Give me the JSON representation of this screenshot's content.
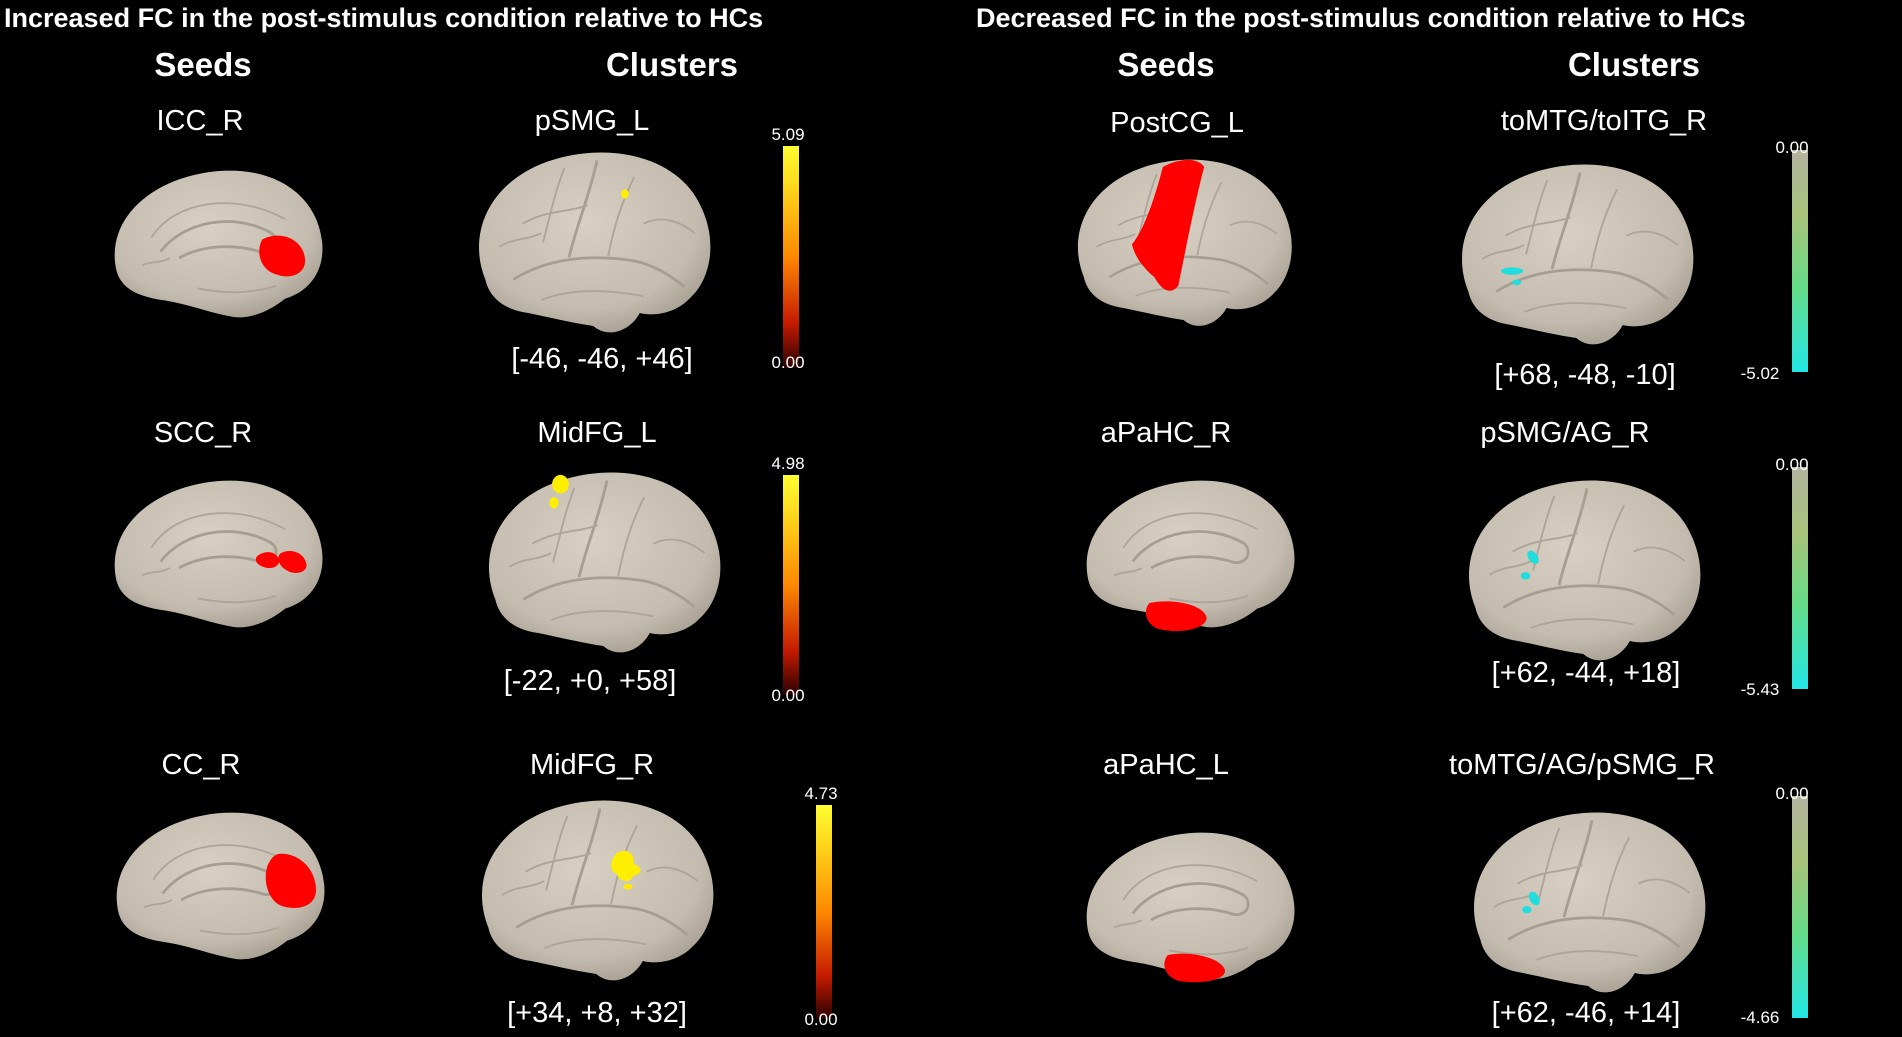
{
  "left_panel": {
    "title": "Increased FC in the post-stimulus condition relative to HCs",
    "seeds_header": "Seeds",
    "clusters_header": "Clusters",
    "rows": [
      {
        "seed": "ICC_R",
        "cluster": "pSMG_L",
        "coord": "[-46, -46, +46]",
        "scale_max": "5.09",
        "scale_min": "0.00"
      },
      {
        "seed": "SCC_R",
        "cluster": "MidFG_L",
        "coord": "[-22, +0, +58]",
        "scale_max": "4.98",
        "scale_min": "0.00"
      },
      {
        "seed": "CC_R",
        "cluster": "MidFG_R",
        "coord": "[+34, +8, +32]",
        "scale_max": "4.73",
        "scale_min": "0.00"
      }
    ]
  },
  "right_panel": {
    "title": "Decreased FC in the post-stimulus condition relative to HCs",
    "seeds_header": "Seeds",
    "clusters_header": "Clusters",
    "rows": [
      {
        "seed": "PostCG_L",
        "cluster": "toMTG/toITG_R",
        "coord": "[+68, -48, -10]",
        "scale_max": "0.00",
        "scale_min": "-5.02"
      },
      {
        "seed": "aPaHC_R",
        "cluster": "pSMG/AG_R",
        "coord": "[+62, -44, +18]",
        "scale_max": "0.00",
        "scale_min": "-5.43"
      },
      {
        "seed": "aPaHC_L",
        "cluster": "toMTG/AG/pSMG_R",
        "coord": "[+62, -46, +14]",
        "scale_max": "0.00",
        "scale_min": "-4.66"
      }
    ]
  },
  "colors": {
    "background": "#000000",
    "brain": "#c9c1b3",
    "seed_region": "#ff0000",
    "increase_cluster": "#ffee00",
    "decrease_cluster": "#22dddd"
  }
}
